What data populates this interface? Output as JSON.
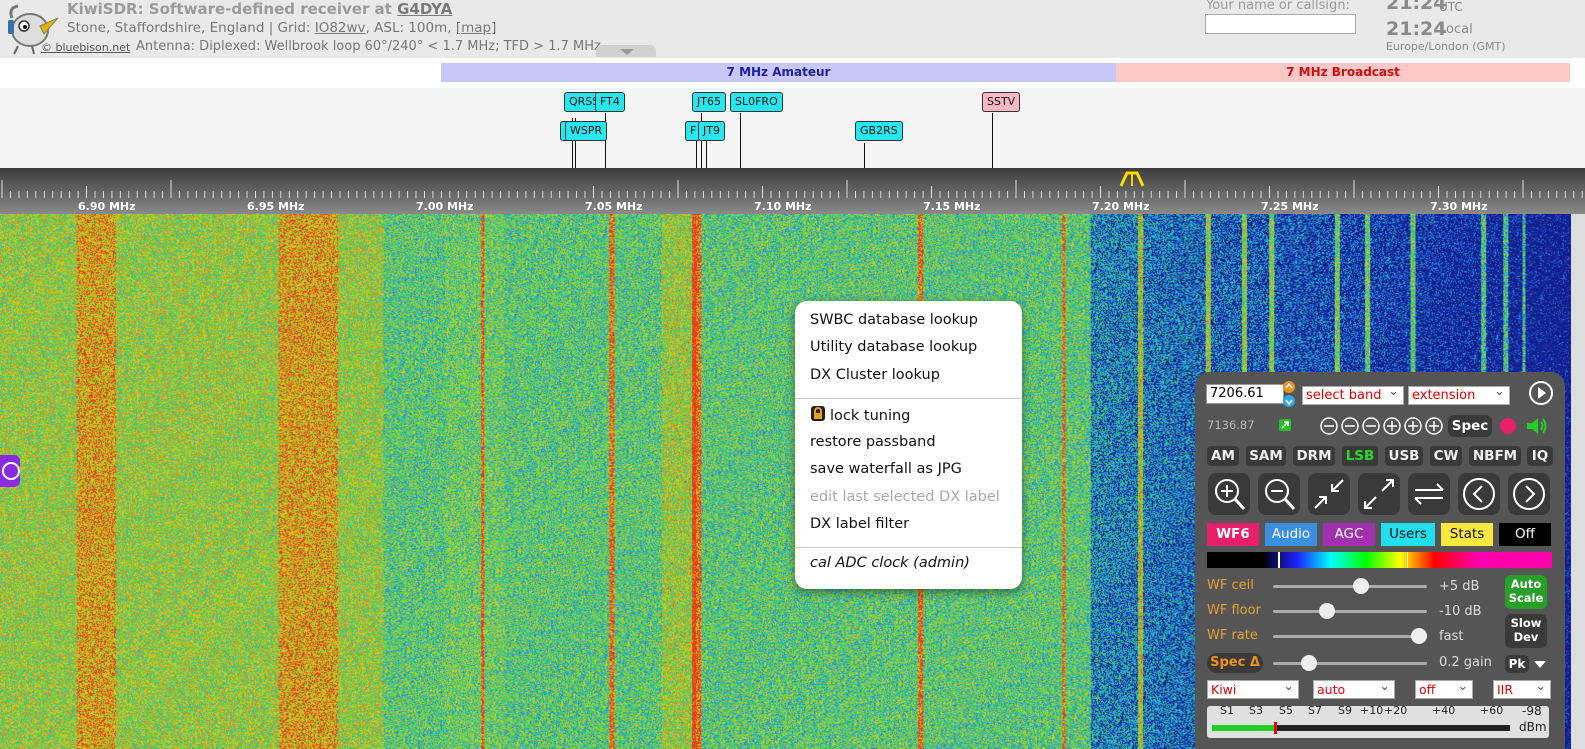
{
  "header": {
    "title_prefix": "KiwiSDR: Software-defined receiver at ",
    "callsign": "G4DYA",
    "location_prefix": "Stone, Staffordshire, England | Grid: ",
    "grid": "IO82wv",
    "location_mid": ", ASL: 100m, ",
    "map_link": "[map]",
    "antenna": "Antenna: Diplexed: Wellbrook loop 60°/240° < 1.7 MHz; TFD > 1.7 MHz",
    "credit": "© bluebison.net",
    "name_label": "Your name or callsign:",
    "name_value": "",
    "utc_time": "21:24",
    "utc_label": "UTC",
    "local_time": "21:24",
    "local_label": "Local",
    "timezone": "Europe/London (GMT)"
  },
  "bands": {
    "amateur": "7 MHz Amateur",
    "broadcast": "7 MHz Broadcast"
  },
  "dx_labels": [
    {
      "text": "QRSS",
      "kind": "util"
    },
    {
      "text": "FT4",
      "kind": "util"
    },
    {
      "text": "JT65",
      "kind": "util"
    },
    {
      "text": "SL0FRO",
      "kind": "util"
    },
    {
      "text": "SSTV",
      "kind": "bc"
    },
    {
      "text": "WSPR",
      "kind": "util"
    },
    {
      "text": "F",
      "kind": "util"
    },
    {
      "text": "JT9",
      "kind": "util"
    },
    {
      "text": "GB2RS",
      "kind": "util"
    }
  ],
  "scale_labels": [
    "6.90 MHz",
    "6.95 MHz",
    "7.00 MHz",
    "7.05 MHz",
    "7.10 MHz",
    "7.15 MHz",
    "7.20 MHz",
    "7.25 MHz",
    "7.30 MHz"
  ],
  "context_menu": {
    "swbc": "SWBC database lookup",
    "utility": "Utility database lookup",
    "dxcluster": "DX Cluster lookup",
    "lock": "lock tuning",
    "restore": "restore passband",
    "save": "save waterfall as JPG",
    "edit": "edit last selected DX label",
    "filter": "DX label filter",
    "cal": "cal ADC clock (admin)"
  },
  "panel": {
    "freq": "7206.61",
    "select_band": "select band",
    "extension": "extension",
    "last_freq": "7136.87",
    "spec": "Spec",
    "modes": [
      "AM",
      "SAM",
      "DRM",
      "LSB",
      "USB",
      "CW",
      "NBFM",
      "IQ"
    ],
    "active_mode": "LSB",
    "tabs": [
      "WF6",
      "Audio",
      "AGC",
      "Users",
      "Stats",
      "Off"
    ],
    "wf_ceil_label": "WF ceil",
    "wf_ceil_val": "+5 dB",
    "wf_floor_label": "WF floor",
    "wf_floor_val": "-10 dB",
    "wf_rate_label": "WF rate",
    "wf_rate_val": "fast",
    "spec_delta": "Spec Δ",
    "gain_val": "0.2 gain",
    "auto_scale_1": "Auto",
    "auto_scale_2": "Scale",
    "slow_dev_1": "Slow",
    "slow_dev_2": "Dev",
    "pk": "Pk",
    "dd1": "Kiwi",
    "dd2": "auto",
    "dd3": "off",
    "dd4": "IIR",
    "smeter_labels": [
      "S1",
      "S3",
      "S5",
      "S7",
      "S9",
      "+10",
      "+20",
      "+40",
      "+60"
    ],
    "dbm_val": "-98",
    "dbm_unit": "dBm",
    "signal_fraction": 0.21
  },
  "colors": {
    "amateur_band": "#c8c8f8",
    "broadcast_band": "#fcc8c8",
    "dx_util": "#27e8f0",
    "dx_bc": "#fbb8c4",
    "lsb_active": "#26d826"
  }
}
